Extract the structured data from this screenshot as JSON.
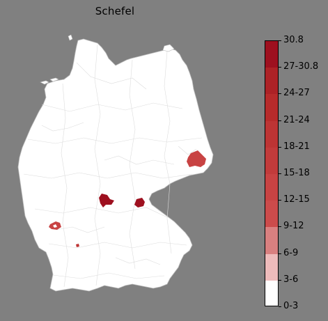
{
  "title": "Schefel",
  "legend": {
    "ticks": [
      "0-3",
      "3-6",
      "6-9",
      "9-12",
      "12-15",
      "15-18",
      "18-21",
      "21-24",
      "24-27",
      "27-30.8",
      "30.8"
    ],
    "colors": [
      "#ffffff",
      "#eebbbb",
      "#d98080",
      "#cc4b4b",
      "#c84343",
      "#c23b3b",
      "#bd3434",
      "#b72b2b",
      "#ad2226",
      "#9e101f"
    ]
  },
  "colors": {
    "background": "#808080",
    "region_fill": "#ffffff",
    "region_border": "#d4d4d4"
  }
}
